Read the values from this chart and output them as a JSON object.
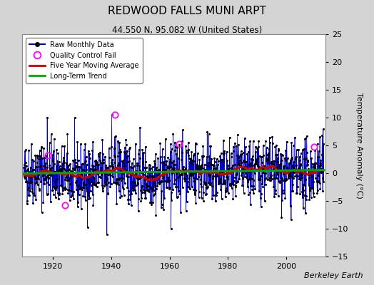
{
  "title": "REDWOOD FALLS MUNI ARPT",
  "subtitle": "44.550 N, 95.082 W (United States)",
  "ylabel": "Temperature Anomaly (°C)",
  "watermark": "Berkeley Earth",
  "start_year": 1910,
  "end_year": 2013,
  "ylim": [
    -15,
    25
  ],
  "yticks": [
    -15,
    -10,
    -5,
    0,
    5,
    10,
    15,
    20,
    25
  ],
  "xticks": [
    1920,
    1940,
    1960,
    1980,
    2000
  ],
  "bg_color": "#d4d4d4",
  "plot_bg_color": "#ffffff",
  "grid_color": "#cccccc",
  "line_color_raw": "#0000cc",
  "line_color_ma": "#cc0000",
  "line_color_trend": "#00aa00",
  "marker_color": "black",
  "qc_fail_color": "#ff00ff",
  "seed": 42
}
